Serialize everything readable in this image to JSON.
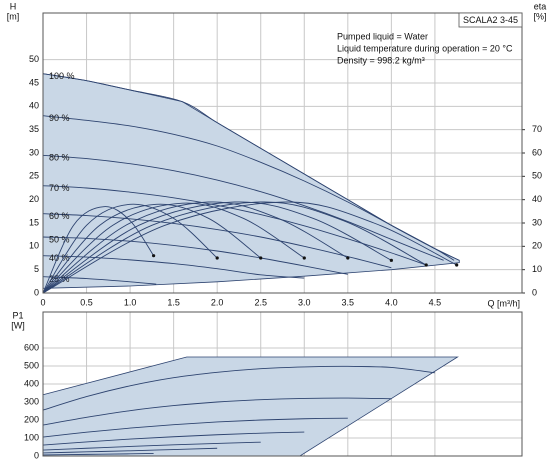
{
  "chart_data": [
    {
      "type": "line",
      "title": "SCALA2 3-45",
      "annotations": [
        "Pumped liquid = Water",
        "Liquid temperature during operation = 20 °C",
        "Density = 998.2 kg/m³"
      ],
      "ylabel": "H",
      "yunit": "[m]",
      "y2label": "eta",
      "y2unit": "[%]",
      "xlabel": "Q [m³/h]",
      "xlim": [
        0,
        5.5
      ],
      "ylim": [
        0,
        60
      ],
      "y2lim": [
        0,
        120
      ],
      "xticks": [
        0,
        0.5,
        {
          "value": 1,
          "label": "1.0"
        },
        1.5,
        {
          "value": 2,
          "label": "2.0"
        },
        2.5,
        {
          "value": 3,
          "label": "3.0"
        },
        3.5,
        {
          "value": 4,
          "label": "4.0"
        },
        4.5
      ],
      "yticks": [
        0,
        5,
        10,
        15,
        20,
        25,
        30,
        35,
        40,
        45,
        50
      ],
      "y2ticks": [
        0,
        10,
        20,
        30,
        40,
        50,
        60,
        70
      ],
      "grid": true,
      "color": "#2e4470",
      "area_color": "#c9d7e6",
      "area": {
        "x": [
          0,
          0.5,
          1.0,
          1.6,
          2.0,
          2.5,
          3.0,
          3.5,
          4.0,
          4.5,
          4.78,
          4.78,
          4.0,
          3.0,
          2.0,
          1.0,
          0
        ],
        "values": [
          47,
          45.5,
          43.5,
          41,
          36.5,
          31,
          25.5,
          20,
          14.5,
          9.5,
          7,
          6.5,
          5,
          3.6,
          2.4,
          1.5,
          1
        ]
      },
      "series": [
        {
          "name": "100 %",
          "x": [
            0,
            0.5,
            1.0,
            1.6,
            2.0,
            2.5,
            3.0,
            3.5,
            4.0,
            4.5,
            4.78
          ],
          "values": [
            47,
            45.5,
            43.5,
            41,
            36.5,
            31,
            25.5,
            20,
            14.5,
            9.5,
            7
          ]
        },
        {
          "name": "90 %",
          "x": [
            0,
            0.5,
            1,
            1.5,
            2,
            2.5,
            3,
            3.5,
            4,
            4.5,
            4.72
          ],
          "values": [
            38,
            37,
            35.8,
            34,
            31.5,
            28,
            24,
            19.5,
            14.5,
            9.5,
            7
          ]
        },
        {
          "name": "80 %",
          "x": [
            0,
            0.5,
            1,
            1.5,
            2,
            2.5,
            3,
            3.5,
            4,
            4.6
          ],
          "values": [
            29.5,
            28.8,
            27.7,
            26.2,
            24.2,
            21.7,
            18.7,
            15.3,
            11.5,
            7
          ]
        },
        {
          "name": "70 %",
          "x": [
            0,
            0.5,
            1,
            1.5,
            2,
            2.5,
            3,
            3.5,
            4,
            4.4
          ],
          "values": [
            23,
            22.5,
            21.6,
            20.4,
            18.8,
            16.8,
            14.4,
            11.6,
            8.6,
            6
          ]
        },
        {
          "name": "60 %",
          "x": [
            0,
            0.5,
            1,
            1.5,
            2,
            2.5,
            3,
            3.5,
            4
          ],
          "values": [
            17,
            16.6,
            15.9,
            14.9,
            13.6,
            12,
            10,
            7.8,
            5.4
          ]
        },
        {
          "name": "50 %",
          "x": [
            0,
            0.5,
            1,
            1.5,
            2,
            2.5,
            3,
            3.5
          ],
          "values": [
            12,
            11.7,
            11.1,
            10.2,
            9,
            7.5,
            5.8,
            4
          ]
        },
        {
          "name": "40 %",
          "x": [
            0,
            0.5,
            1,
            1.5,
            2,
            2.5,
            3
          ],
          "values": [
            8,
            7.7,
            7.1,
            6.3,
            5.2,
            3.9,
            3.2
          ]
        },
        {
          "name": "25 %",
          "x": [
            0,
            0.5,
            1,
            1.3
          ],
          "values": [
            3.5,
            3.1,
            2.4,
            1.9
          ]
        },
        {
          "axis": "y2",
          "end_marker": true,
          "x": [
            0,
            0.35,
            0.7,
            1.0,
            1.27
          ],
          "values": [
            0,
            29,
            37,
            31,
            16
          ]
        },
        {
          "axis": "y2",
          "end_marker": true,
          "x": [
            0,
            0.5,
            1.0,
            1.5,
            2.0
          ],
          "values": [
            0,
            29,
            38,
            32,
            15
          ]
        },
        {
          "axis": "y2",
          "end_marker": true,
          "x": [
            0,
            0.65,
            1.3,
            1.9,
            2.5
          ],
          "values": [
            0,
            29,
            38,
            32,
            15
          ]
        },
        {
          "axis": "y2",
          "end_marker": true,
          "x": [
            0,
            0.8,
            1.6,
            2.3,
            3.0
          ],
          "values": [
            0,
            29,
            38.5,
            32,
            15
          ]
        },
        {
          "axis": "y2",
          "end_marker": true,
          "x": [
            0,
            0.95,
            1.9,
            2.7,
            3.5
          ],
          "values": [
            0,
            29,
            39,
            32,
            15
          ]
        },
        {
          "axis": "y2",
          "end_marker": true,
          "x": [
            0,
            1.1,
            2.2,
            3.1,
            4.0
          ],
          "values": [
            0,
            29,
            39,
            32,
            14
          ]
        },
        {
          "axis": "y2",
          "end_marker": true,
          "x": [
            0,
            1.25,
            2.5,
            3.45,
            4.4
          ],
          "values": [
            0,
            29,
            39,
            31,
            12
          ]
        },
        {
          "axis": "y2",
          "end_marker": true,
          "x": [
            0,
            1.4,
            2.8,
            3.8,
            4.75
          ],
          "values": [
            0,
            29,
            39,
            30,
            12
          ]
        }
      ]
    },
    {
      "type": "line",
      "ylabel": "P1",
      "yunit": "[W]",
      "xlim": [
        0,
        5.5
      ],
      "ylim": [
        0,
        800
      ],
      "xticks": [
        0,
        0.5,
        1,
        1.5,
        2,
        2.5,
        3,
        3.5,
        4,
        4.5
      ],
      "yticks": [
        0,
        100,
        200,
        300,
        400,
        500,
        600
      ],
      "grid": true,
      "color": "#2e4470",
      "area_color": "#c9d7e6",
      "area": {
        "x": [
          0,
          1.65,
          4.76,
          2.95,
          0
        ],
        "values": [
          340,
          550,
          550,
          0,
          0
        ]
      },
      "series": [
        {
          "x": [
            0,
            0.5,
            1,
            1.5,
            2,
            2.5,
            3,
            3.5,
            4,
            4.5
          ],
          "values": [
            255,
            330,
            390,
            435,
            465,
            485,
            495,
            498,
            492,
            462
          ]
        },
        {
          "x": [
            0,
            0.5,
            1,
            1.5,
            2,
            2.5,
            3,
            3.5,
            4
          ],
          "values": [
            172,
            215,
            252,
            280,
            300,
            313,
            320,
            322,
            318
          ]
        },
        {
          "x": [
            0,
            0.5,
            1,
            1.5,
            2,
            2.5,
            3,
            3.5
          ],
          "values": [
            105,
            132,
            155,
            174,
            189,
            200,
            207,
            210
          ]
        },
        {
          "x": [
            0,
            0.5,
            1,
            1.5,
            2,
            2.5,
            3
          ],
          "values": [
            61,
            78,
            94,
            107,
            118,
            127,
            133
          ]
        },
        {
          "x": [
            0,
            0.5,
            1,
            1.5,
            2,
            2.5
          ],
          "values": [
            33,
            43,
            53,
            62,
            70,
            77
          ]
        },
        {
          "x": [
            0,
            0.5,
            1,
            1.5,
            2
          ],
          "values": [
            17,
            23,
            29,
            36,
            43
          ]
        },
        {
          "x": [
            0,
            0.5,
            1,
            1.27
          ],
          "values": [
            6,
            9,
            12,
            14
          ]
        }
      ]
    }
  ]
}
